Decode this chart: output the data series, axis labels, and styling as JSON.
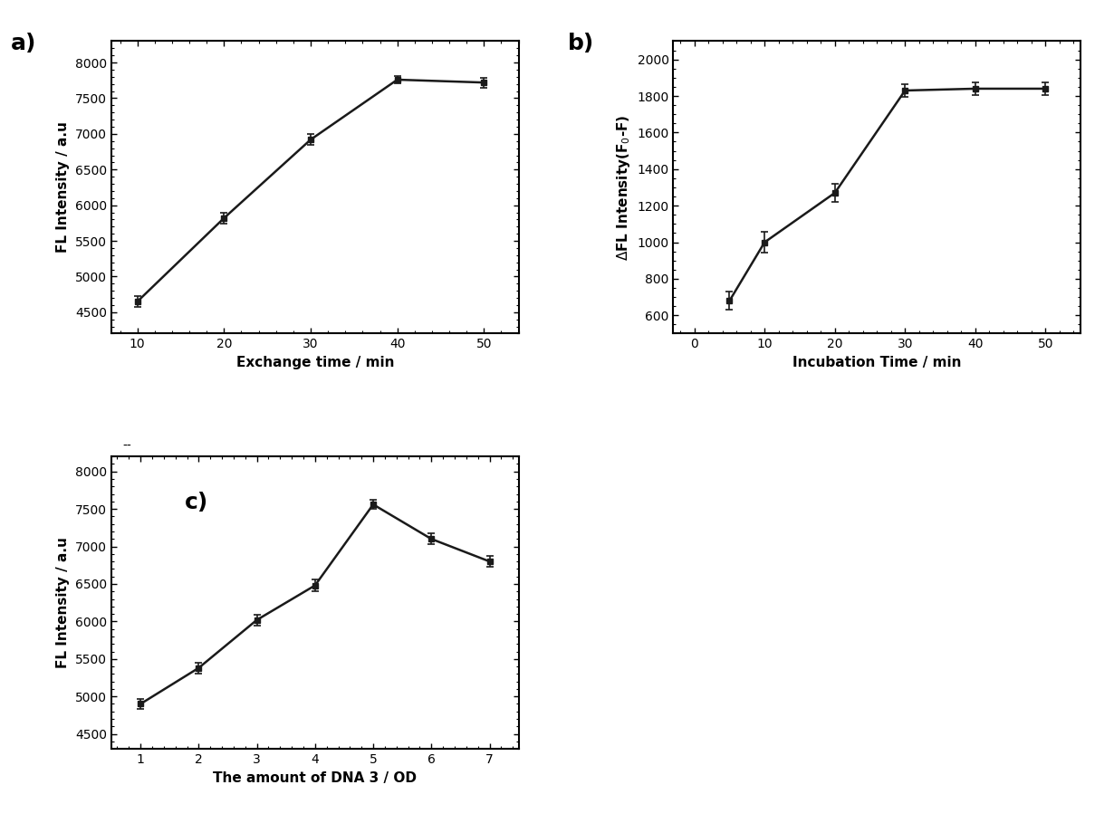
{
  "plot_a": {
    "x": [
      10,
      20,
      30,
      40,
      50
    ],
    "y": [
      4650,
      5820,
      6920,
      7760,
      7720
    ],
    "yerr": [
      80,
      80,
      80,
      50,
      70
    ],
    "xlabel": "Exchange time / min",
    "ylabel": "FL Intensity / a.u",
    "ylim": [
      4200,
      8300
    ],
    "yticks": [
      4500,
      5000,
      5500,
      6000,
      6500,
      7000,
      7500,
      8000
    ],
    "xticks": [
      10,
      20,
      30,
      40,
      50
    ],
    "xlim": [
      7,
      54
    ],
    "label": "a)"
  },
  "plot_b": {
    "x": [
      5,
      10,
      20,
      30,
      40,
      50
    ],
    "y": [
      680,
      1000,
      1270,
      1830,
      1840,
      1840
    ],
    "yerr": [
      50,
      55,
      50,
      35,
      35,
      35
    ],
    "xlabel": "Incubation Time / min",
    "ylabel": "ΔFL Intensity(F₀-F)",
    "ylim": [
      500,
      2100
    ],
    "yticks": [
      600,
      800,
      1000,
      1200,
      1400,
      1600,
      1800,
      2000
    ],
    "xticks": [
      0,
      10,
      20,
      30,
      40,
      50
    ],
    "xlim": [
      -3,
      55
    ],
    "label": "b)"
  },
  "plot_c": {
    "x": [
      1,
      2,
      3,
      4,
      5,
      6,
      7
    ],
    "y": [
      4900,
      5380,
      6020,
      6480,
      7560,
      7100,
      6800
    ],
    "yerr": [
      70,
      75,
      75,
      75,
      60,
      75,
      75
    ],
    "xlabel": "The amount of DNA 3 / OD",
    "ylabel": "FL Intensity / a.u",
    "ylim": [
      4300,
      8200
    ],
    "yticks": [
      4500,
      5000,
      5500,
      6000,
      6500,
      7000,
      7500,
      8000
    ],
    "xticks": [
      1,
      2,
      3,
      4,
      5,
      6,
      7
    ],
    "xlim": [
      0.5,
      7.5
    ],
    "label": "c)"
  },
  "line_color": "#1a1a1a",
  "marker": "s",
  "markersize": 5,
  "linewidth": 1.8,
  "capsize": 3,
  "fontsize_label": 11,
  "fontsize_tick": 10,
  "fontsize_panel": 18
}
